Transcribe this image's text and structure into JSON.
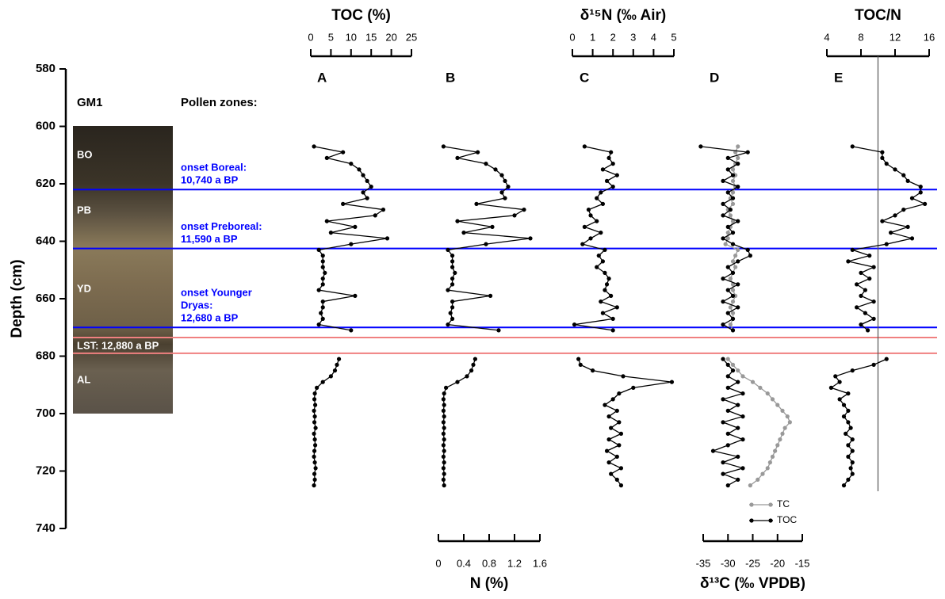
{
  "chart_data": {
    "type": "depth-profile",
    "ylabel": "Depth (cm)",
    "ylim": [
      580,
      740
    ],
    "yticks": [
      580,
      600,
      620,
      640,
      660,
      680,
      700,
      720,
      740
    ],
    "core_name": "GM1",
    "pollen_label": "Pollen zones:",
    "core_zones": [
      "BO",
      "PB",
      "YD",
      "LST: 12,880 a BP",
      "AL"
    ],
    "boundaries": [
      {
        "depth": 622,
        "color": "#0000ff",
        "label": [
          "onset Boreal:",
          "10,740 a BP"
        ]
      },
      {
        "depth": 642.5,
        "color": "#0000ff",
        "label": [
          "onset Preboreal:",
          "11,590 a BP"
        ]
      },
      {
        "depth": 670,
        "color": "#0000ff",
        "label": [
          "onset Younger",
          "Dryas:",
          "12,680 a BP"
        ]
      },
      {
        "depth": 673.5,
        "color": "#f08080"
      },
      {
        "depth": 679,
        "color": "#f08080"
      }
    ],
    "depth": [
      607,
      609,
      611,
      613,
      615,
      617,
      619,
      621,
      623,
      625,
      627,
      629,
      631,
      633,
      635,
      637,
      639,
      641,
      643,
      645,
      647,
      649,
      651,
      653,
      655,
      657,
      659,
      661,
      663,
      665,
      667,
      669,
      671,
      676,
      681,
      683,
      685,
      687,
      689,
      691,
      693,
      695,
      697,
      699,
      701,
      703,
      705,
      707,
      709,
      711,
      713,
      715,
      717,
      719,
      721,
      723,
      725
    ],
    "panels": [
      {
        "label": "A",
        "xlabel": "TOC (%)",
        "axis": "top",
        "xlim": [
          0,
          25
        ],
        "xticks": [
          0,
          5,
          10,
          15,
          20,
          25
        ],
        "series": [
          {
            "name": "TOC",
            "color": "#000000",
            "values": [
              0.8,
              8,
              4,
              10,
              12,
              13,
              14,
              15,
              13,
              14,
              8,
              18,
              16,
              4,
              11,
              5,
              19,
              10,
              2,
              3,
              3,
              3,
              3.5,
              3,
              3,
              2,
              11,
              3,
              3,
              2.5,
              3,
              2,
              10,
              null,
              7,
              6.5,
              6,
              5,
              3,
              1.5,
              1,
              0.9,
              1.1,
              0.8,
              1,
              0.9,
              1.2,
              0.8,
              1,
              1.1,
              0.9,
              0.8,
              1,
              1.2,
              0.9,
              1,
              0.8
            ]
          }
        ]
      },
      {
        "label": "B",
        "xlabel": "N (%)",
        "axis": "bottom",
        "xlim": [
          0,
          1.6
        ],
        "xticks": [
          0,
          0.4,
          0.8,
          1.2,
          1.6
        ],
        "series": [
          {
            "name": "N",
            "color": "#000000",
            "values": [
              0.08,
              0.62,
              0.3,
              0.75,
              0.9,
              1.0,
              1.05,
              1.1,
              1.0,
              1.05,
              0.6,
              1.35,
              1.2,
              0.3,
              0.85,
              0.4,
              1.45,
              0.75,
              0.15,
              0.22,
              0.22,
              0.22,
              0.26,
              0.22,
              0.22,
              0.15,
              0.82,
              0.22,
              0.22,
              0.19,
              0.22,
              0.15,
              0.95,
              null,
              0.58,
              0.55,
              0.52,
              0.45,
              0.3,
              0.12,
              0.09,
              0.08,
              0.09,
              0.08,
              0.09,
              0.08,
              0.09,
              0.08,
              0.09,
              0.08,
              0.09,
              0.08,
              0.09,
              0.08,
              0.09,
              0.08,
              0.09
            ]
          }
        ]
      },
      {
        "label": "C",
        "xlabel": "δ¹⁵N (‰ Air)",
        "axis": "top",
        "xlim": [
          0,
          5
        ],
        "xticks": [
          0,
          1,
          2,
          3,
          4,
          5
        ],
        "series": [
          {
            "name": "δ15N",
            "color": "#000000",
            "values": [
              0.6,
              1.9,
              1.8,
              2,
              1.5,
              2.2,
              1.7,
              2,
              1.4,
              1.2,
              1.5,
              0.8,
              0.9,
              1.2,
              0.6,
              1.4,
              0.9,
              0.5,
              1.6,
              1.3,
              1.5,
              1.2,
              1.6,
              1.8,
              1.7,
              1.6,
              1.9,
              1.4,
              2.2,
              1.5,
              2.0,
              0.1,
              2.0,
              null,
              0.3,
              0.4,
              1.0,
              2.5,
              4.9,
              3.0,
              2.3,
              2.0,
              1.6,
              2.2,
              1.8,
              2.3,
              1.9,
              2.4,
              1.8,
              2.3,
              1.7,
              2.2,
              1.8,
              2.4,
              1.9,
              2.2,
              2.4
            ]
          }
        ]
      },
      {
        "label": "D",
        "xlabel": "δ¹³C (‰ VPDB)",
        "axis": "bottom",
        "xlim": [
          -35,
          -15
        ],
        "xticks": [
          -35,
          -30,
          -25,
          -20,
          -15
        ],
        "legend": true,
        "series": [
          {
            "name": "TC",
            "color": "#999999",
            "values": [
              -28,
              -28.5,
              -28,
              -28.5,
              -29,
              -28.5,
              -29,
              -28.5,
              -29,
              -29.5,
              -29,
              -30,
              -29.5,
              -29,
              -29.5,
              -30,
              -30,
              -30.5,
              -28,
              -28.5,
              -29,
              -28.5,
              -29,
              -29.5,
              -29,
              -29,
              -28.5,
              -29,
              -29.5,
              -29,
              -29,
              -29.5,
              -29,
              null,
              -30,
              -29,
              -28,
              -27,
              -25,
              -23.5,
              -22,
              -21,
              -20,
              -19,
              -18,
              -17.5,
              -18.5,
              -19,
              -19.5,
              -20,
              -20.5,
              -21,
              -21.5,
              -22,
              -23,
              -24,
              -25.5
            ]
          },
          {
            "name": "TOC",
            "color": "#000000",
            "values": [
              -35.5,
              -26,
              -30,
              -28,
              -30,
              -29,
              -31,
              -28,
              -30,
              -29,
              -31,
              -29.5,
              -31,
              -28,
              -30,
              -29,
              -31,
              -29,
              -26,
              -25.5,
              -28,
              -30,
              -29,
              -31,
              -28,
              -30,
              -29,
              -31,
              -28,
              -30,
              -29,
              -31,
              -29,
              null,
              -31,
              -30,
              -29,
              -30,
              -28,
              -30,
              -27,
              -31,
              -28,
              -30,
              -27,
              -31,
              -28,
              -30,
              -27,
              -30,
              -33,
              -28,
              -31,
              -27,
              -31,
              -28,
              -30
            ]
          }
        ]
      },
      {
        "label": "E",
        "xlabel": "TOC/N",
        "axis": "top",
        "xlim": [
          4,
          16
        ],
        "xticks": [
          4,
          8,
          12,
          16
        ],
        "reference_line": 10,
        "series": [
          {
            "name": "TOC/N",
            "color": "#000000",
            "values": [
              7,
              10.5,
              10.5,
              11,
              12,
              13,
              13.5,
              15,
              15,
              14,
              15.5,
              13,
              12,
              10.5,
              13.5,
              11.5,
              14,
              11,
              7,
              9,
              6.5,
              9.5,
              8,
              9,
              7.5,
              8.5,
              8,
              9.5,
              7.5,
              8.5,
              9.5,
              8,
              8.8,
              null,
              11,
              9.5,
              7,
              5,
              5.5,
              4.5,
              6.5,
              5.5,
              6,
              6.5,
              6,
              6.5,
              6.8,
              6.2,
              7,
              6.5,
              7,
              6.5,
              7,
              6.8,
              7,
              6.5,
              6
            ]
          }
        ]
      }
    ]
  }
}
